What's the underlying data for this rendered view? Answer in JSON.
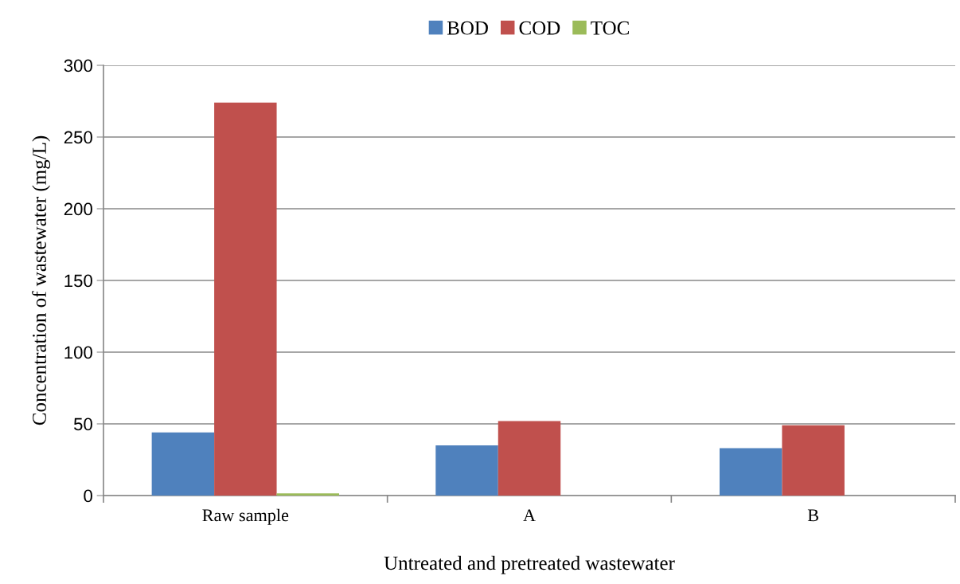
{
  "chart_data": {
    "type": "bar",
    "xlabel": "Untreated and pretreated wastewater",
    "ylabel": "Concentration of wastewater (mg/L)",
    "categories": [
      "Raw sample",
      "A",
      "B"
    ],
    "series": [
      {
        "name": "BOD",
        "color": "#4f81bd",
        "values": [
          44,
          35,
          33
        ]
      },
      {
        "name": "COD",
        "color": "#c0504d",
        "values": [
          274,
          52,
          49
        ]
      },
      {
        "name": "TOC",
        "color": "#9bbb59",
        "values": [
          1.5,
          0,
          0
        ]
      }
    ],
    "ylim": [
      0,
      300
    ],
    "yticks": [
      0,
      50,
      100,
      150,
      200,
      250,
      300
    ],
    "grid": "y",
    "legend": "top"
  }
}
